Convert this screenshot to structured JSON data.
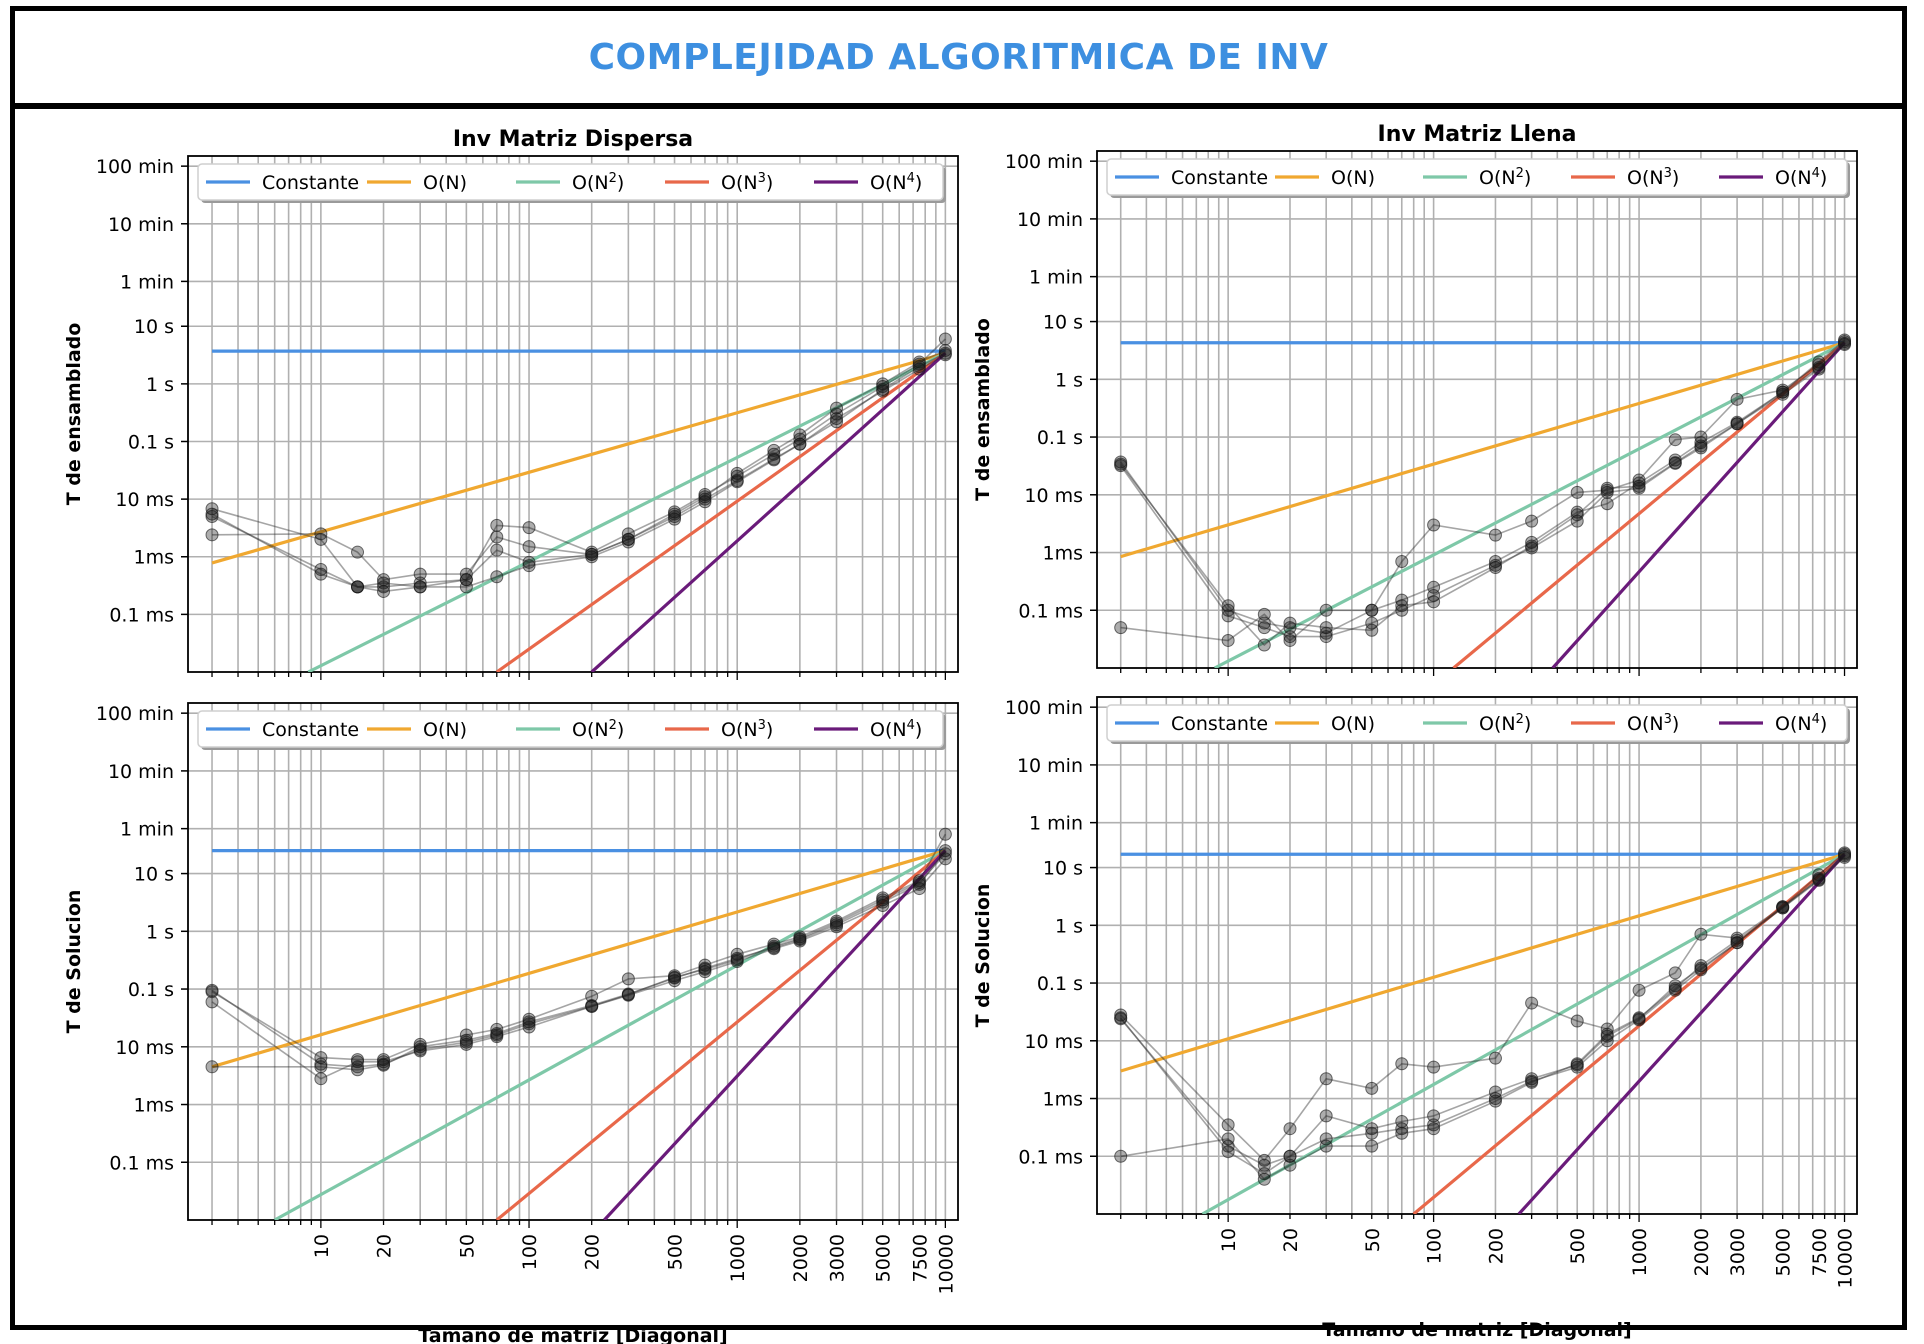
{
  "page_title": "COMPLEJIDAD ALGORITMICA DE INV",
  "y_tick_labels": [
    "0.1 ms",
    "1ms",
    "10 ms",
    "0.1 s",
    "1 s",
    "10 s",
    "1 min",
    "10 min",
    "100 min"
  ],
  "y_tick_values_seconds": [
    0.0001,
    0.001,
    0.01,
    0.1,
    1,
    10,
    60,
    600,
    6000
  ],
  "x_tick_labels": [
    "10",
    "20",
    "50",
    "100",
    "200",
    "500",
    "1000",
    "2000",
    "3000",
    "5000",
    "7500",
    "10000"
  ],
  "x_tick_values": [
    10,
    20,
    50,
    100,
    200,
    500,
    1000,
    2000,
    3000,
    5000,
    7500,
    10000
  ],
  "legend": [
    {
      "label": "Constante",
      "color": "#4a90e2"
    },
    {
      "label": "O(N)",
      "color": "#f0a830"
    },
    {
      "label": "O(N",
      "sup": "2",
      "tail": ")",
      "color": "#7ec8a8"
    },
    {
      "label": "O(N",
      "sup": "3",
      "tail": ")",
      "color": "#e8684a"
    },
    {
      "label": "O(N",
      "sup": "4",
      "tail": ")",
      "color": "#6a1b7a"
    }
  ],
  "chart_data": [
    {
      "type": "line",
      "title": "Inv Matriz Dispersa",
      "ylabel": "T de ensamblado",
      "xlabel": "",
      "xscale": "log",
      "yscale": "log",
      "xlim": [
        2.3,
        11500
      ],
      "ylim": [
        1e-05,
        9000
      ],
      "grid": true,
      "legend_position": "top",
      "reference_lines": [
        {
          "name": "Constante",
          "x": [
            3,
            10000
          ],
          "y": [
            3.7,
            3.7
          ]
        },
        {
          "name": "O(N)",
          "x": [
            3,
            10000
          ],
          "y": [
            0.00078,
            3.4
          ]
        },
        {
          "name": "O(N^2)",
          "x": [
            8.7,
            10000
          ],
          "y": [
            1e-05,
            3.4
          ]
        },
        {
          "name": "O(N^3)",
          "x": [
            70,
            10000
          ],
          "y": [
            1e-05,
            3.4
          ]
        },
        {
          "name": "O(N^4)",
          "x": [
            200,
            10000
          ],
          "y": [
            1e-05,
            3.4
          ]
        }
      ],
      "x": [
        3,
        10,
        15,
        20,
        30,
        50,
        70,
        100,
        200,
        300,
        500,
        700,
        1000,
        1500,
        2000,
        3000,
        5000,
        7500,
        10000
      ],
      "series": [
        {
          "values": [
            0.005,
            0.0006,
            0.0003,
            0.00035,
            0.0003,
            0.0004,
            0.0013,
            0.0008,
            0.0011,
            0.002,
            0.005,
            0.01,
            0.021,
            0.05,
            0.09,
            0.22,
            0.8,
            2.0,
            3.4
          ]
        },
        {
          "values": [
            0.0068,
            0.002,
            0.0003,
            0.0003,
            0.00035,
            0.0004,
            0.0035,
            0.0032,
            0.0012,
            0.0025,
            0.006,
            0.012,
            0.025,
            0.06,
            0.11,
            0.3,
            0.9,
            2.2,
            6.0
          ]
        },
        {
          "values": [
            0.0024,
            0.0025,
            0.0012,
            0.0004,
            0.0005,
            0.0005,
            0.0022,
            0.0015,
            0.0011,
            0.002,
            0.0055,
            0.011,
            0.028,
            0.07,
            0.13,
            0.38,
            1.0,
            2.4,
            3.8
          ]
        },
        {
          "values": [
            0.0055,
            0.0005,
            0.0003,
            0.00025,
            0.0003,
            0.0003,
            0.00045,
            0.0007,
            0.001,
            0.0018,
            0.0045,
            0.009,
            0.02,
            0.048,
            0.09,
            0.25,
            0.75,
            1.8,
            3.2
          ]
        }
      ]
    },
    {
      "type": "line",
      "title": "Inv Matriz Llena",
      "ylabel": "T de ensamblado",
      "xlabel": "",
      "xscale": "log",
      "yscale": "log",
      "xlim": [
        2.3,
        11500
      ],
      "ylim": [
        1e-05,
        9000
      ],
      "grid": true,
      "legend_position": "top",
      "reference_lines": [
        {
          "name": "Constante",
          "x": [
            3,
            10000
          ],
          "y": [
            4.3,
            4.3
          ]
        },
        {
          "name": "O(N)",
          "x": [
            3,
            10000
          ],
          "y": [
            0.00085,
            4.3
          ]
        },
        {
          "name": "O(N^2)",
          "x": [
            8.6,
            10000
          ],
          "y": [
            1e-05,
            4.3
          ]
        },
        {
          "name": "O(N^3)",
          "x": [
            125,
            10000
          ],
          "y": [
            1e-05,
            4.3
          ]
        },
        {
          "name": "O(N^4)",
          "x": [
            380,
            10000
          ],
          "y": [
            1e-05,
            4.3
          ]
        }
      ],
      "x": [
        3,
        10,
        15,
        20,
        30,
        50,
        70,
        100,
        200,
        300,
        500,
        700,
        1000,
        1500,
        2000,
        3000,
        5000,
        7500,
        10000
      ],
      "series": [
        {
          "values": [
            0.032,
            8e-05,
            5e-05,
            3.5e-05,
            3.5e-05,
            6e-05,
            0.0001,
            0.00018,
            0.0006,
            0.0012,
            0.0035,
            0.011,
            0.013,
            0.035,
            0.065,
            0.17,
            0.6,
            1.6,
            4.0
          ]
        },
        {
          "values": [
            0.037,
            0.0001,
            6e-05,
            5e-05,
            4e-05,
            0.0001,
            0.0007,
            0.003,
            0.002,
            0.0035,
            0.011,
            0.012,
            0.018,
            0.09,
            0.1,
            0.45,
            0.65,
            1.8,
            4.5
          ]
        },
        {
          "values": [
            5e-05,
            3e-05,
            8.5e-05,
            3e-05,
            0.0001,
            0.0001,
            0.00015,
            0.00025,
            0.0007,
            0.0015,
            0.005,
            0.007,
            0.016,
            0.04,
            0.08,
            0.18,
            0.6,
            2.0,
            4.8
          ]
        },
        {
          "values": [
            0.034,
            0.00012,
            2.5e-05,
            6e-05,
            5e-05,
            4.5e-05,
            0.00012,
            0.00014,
            0.00055,
            0.0013,
            0.0045,
            0.013,
            0.014,
            0.036,
            0.07,
            0.17,
            0.55,
            1.5,
            4.2
          ]
        }
      ]
    },
    {
      "type": "line",
      "title": "",
      "ylabel": "T de Solucion",
      "xlabel": "Tamano de matriz [Diagonal]",
      "xscale": "log",
      "yscale": "log",
      "xlim": [
        2.3,
        11500
      ],
      "ylim": [
        1e-05,
        9000
      ],
      "grid": true,
      "legend_position": "top",
      "reference_lines": [
        {
          "name": "Constante",
          "x": [
            3,
            10000
          ],
          "y": [
            25,
            25
          ]
        },
        {
          "name": "O(N)",
          "x": [
            3,
            10000
          ],
          "y": [
            0.0045,
            25
          ]
        },
        {
          "name": "O(N^2)",
          "x": [
            6,
            10000
          ],
          "y": [
            1e-05,
            25
          ]
        },
        {
          "name": "O(N^3)",
          "x": [
            70,
            10000
          ],
          "y": [
            1e-05,
            25
          ]
        },
        {
          "name": "O(N^4)",
          "x": [
            230,
            10000
          ],
          "y": [
            1e-05,
            25
          ]
        }
      ],
      "x": [
        3,
        10,
        15,
        20,
        30,
        50,
        70,
        100,
        200,
        300,
        500,
        700,
        1000,
        1500,
        2000,
        3000,
        5000,
        7500,
        10000
      ],
      "series": [
        {
          "values": [
            0.095,
            0.005,
            0.0045,
            0.005,
            0.009,
            0.012,
            0.016,
            0.025,
            0.05,
            0.08,
            0.16,
            0.22,
            0.32,
            0.55,
            0.75,
            1.4,
            3.5,
            7.0,
            22
          ]
        },
        {
          "values": [
            0.09,
            0.0065,
            0.006,
            0.006,
            0.011,
            0.016,
            0.02,
            0.03,
            0.075,
            0.15,
            0.17,
            0.26,
            0.4,
            0.6,
            0.8,
            1.5,
            3.8,
            7.5,
            48
          ]
        },
        {
          "values": [
            0.06,
            0.0028,
            0.0055,
            0.0055,
            0.0085,
            0.011,
            0.015,
            0.022,
            0.05,
            0.078,
            0.14,
            0.2,
            0.3,
            0.5,
            0.68,
            1.2,
            2.8,
            5.5,
            18
          ]
        },
        {
          "values": [
            0.0045,
            0.0045,
            0.004,
            0.0048,
            0.01,
            0.013,
            0.017,
            0.027,
            0.052,
            0.082,
            0.155,
            0.23,
            0.34,
            0.52,
            0.72,
            1.3,
            3.2,
            6.5,
            25
          ]
        }
      ]
    },
    {
      "type": "line",
      "title": "",
      "ylabel": "T de Solucion",
      "xlabel": "Tamano de matriz [Diagonal]",
      "xscale": "log",
      "yscale": "log",
      "xlim": [
        2.3,
        11500
      ],
      "ylim": [
        1e-05,
        9000
      ],
      "grid": true,
      "legend_position": "top",
      "reference_lines": [
        {
          "name": "Constante",
          "x": [
            3,
            10000
          ],
          "y": [
            17,
            17
          ]
        },
        {
          "name": "O(N)",
          "x": [
            3,
            10000
          ],
          "y": [
            0.003,
            17
          ]
        },
        {
          "name": "O(N^2)",
          "x": [
            7.5,
            10000
          ],
          "y": [
            1e-05,
            17
          ]
        },
        {
          "name": "O(N^3)",
          "x": [
            80,
            10000
          ],
          "y": [
            1e-05,
            17
          ]
        },
        {
          "name": "O(N^4)",
          "x": [
            260,
            10000
          ],
          "y": [
            1e-05,
            17
          ]
        }
      ],
      "x": [
        3,
        10,
        15,
        20,
        30,
        50,
        70,
        100,
        200,
        300,
        500,
        700,
        1000,
        1500,
        2000,
        3000,
        5000,
        7500,
        10000
      ],
      "series": [
        {
          "values": [
            0.025,
            0.00012,
            5e-05,
            0.0001,
            0.0002,
            0.00025,
            0.0003,
            0.00035,
            0.001,
            0.002,
            0.0035,
            0.01,
            0.023,
            0.075,
            0.17,
            0.5,
            2.0,
            6.0,
            16
          ]
        },
        {
          "values": [
            0.028,
            0.00035,
            8.5e-05,
            0.0003,
            0.0022,
            0.0015,
            0.004,
            0.0035,
            0.005,
            0.045,
            0.022,
            0.016,
            0.075,
            0.15,
            0.7,
            0.6,
            2.1,
            7.5,
            18
          ]
        },
        {
          "values": [
            0.0001,
            0.0002,
            4e-05,
            7e-05,
            0.00015,
            0.00015,
            0.00025,
            0.0003,
            0.0009,
            0.0019,
            0.004,
            0.013,
            0.025,
            0.08,
            0.2,
            0.55,
            2.0,
            6.5,
            17
          ]
        },
        {
          "values": [
            0.024,
            0.00015,
            7e-05,
            0.0001,
            0.0005,
            0.0003,
            0.0004,
            0.0005,
            0.0013,
            0.0022,
            0.0038,
            0.012,
            0.024,
            0.09,
            0.18,
            0.5,
            2.1,
            6.2,
            15
          ]
        }
      ]
    }
  ]
}
